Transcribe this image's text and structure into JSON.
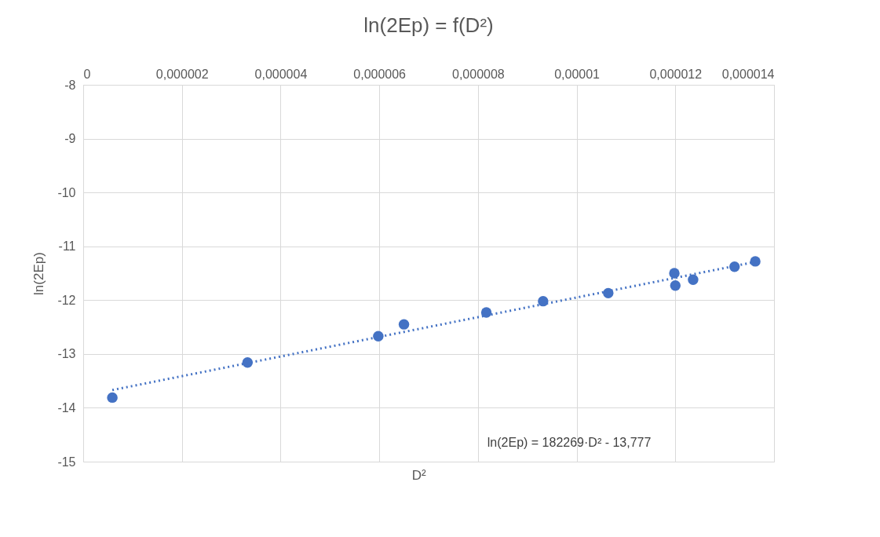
{
  "chart_data": {
    "type": "scatter",
    "title": "ln(2Ep) = f(D²)",
    "xlabel": "D²",
    "ylabel": "ln(2Ep)",
    "xlim": [
      0,
      1.4e-05
    ],
    "xticks": [
      0,
      {
        "value": 2e-06,
        "label": "0,000002"
      },
      {
        "value": 4e-06,
        "label": "0,000004"
      },
      {
        "value": 6e-06,
        "label": "0,000006"
      },
      {
        "value": 8e-06,
        "label": "0,000008"
      },
      {
        "value": 1e-05,
        "label": "0,00001"
      },
      {
        "value": 1.2e-05,
        "label": "0,000012"
      },
      {
        "value": 1.4e-05,
        "label": "0,000014"
      }
    ],
    "ylim": [
      -15,
      -8
    ],
    "yticks": [
      -15,
      -14,
      -13,
      -12,
      -11,
      -10,
      -9,
      -8
    ],
    "grid": true,
    "marker": "circle",
    "series": [
      {
        "color": "#4472c4",
        "x": [
          5.9e-07,
          3.33e-06,
          5.98e-06,
          6.5e-06,
          8.17e-06,
          9.32e-06,
          1.064e-05,
          1.198e-05,
          1.2e-05,
          1.236e-05,
          1.32e-05,
          1.362e-05
        ],
        "values": [
          -13.81,
          -13.16,
          -12.67,
          -12.45,
          -12.23,
          -12.02,
          -11.87,
          -11.5,
          -11.73,
          -11.62,
          -11.38,
          -11.28
        ]
      },
      {
        "type": "line",
        "marker": "none",
        "line_style": "dotted",
        "color": "#4472c4",
        "x": [
          5.9e-07,
          1.362e-05
        ],
        "values": [
          -13.67,
          -11.29
        ]
      }
    ],
    "annotations": [
      "ln(2Ep) = 182269·D² - 13,777"
    ]
  }
}
